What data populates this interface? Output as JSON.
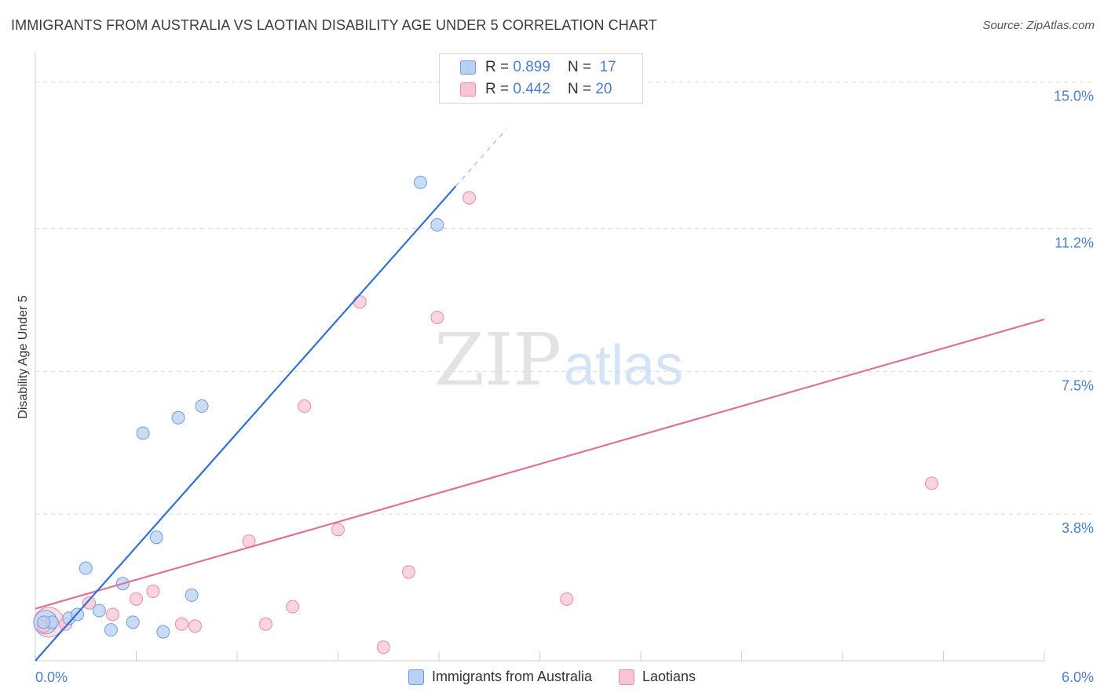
{
  "title": "IMMIGRANTS FROM AUSTRALIA VS LAOTIAN DISABILITY AGE UNDER 5 CORRELATION CHART",
  "source": "Source: ZipAtlas.com",
  "watermark": {
    "zip": "ZIP",
    "atlas": "atlas"
  },
  "legend": {
    "rows": [
      {
        "r_label": "R =",
        "r_value": "0.899",
        "n_label": "N =",
        "n_value": "17"
      },
      {
        "r_label": "R =",
        "r_value": "0.442",
        "n_label": "N =",
        "n_value": "20"
      }
    ]
  },
  "bottom_legend": {
    "series_a": "Immigrants from Australia",
    "series_b": "Laotians"
  },
  "colors": {
    "blue_fill": "#b8d0f2",
    "blue_stroke": "#6e9ce0",
    "blue_line": "#2f72d4",
    "pink_fill": "#f8c5d4",
    "pink_stroke": "#e98aa6",
    "pink_line": "#e0709a",
    "axis_label": "#4a7fd0",
    "grid": "#d8d8d8"
  },
  "chart_data": {
    "type": "scatter",
    "title": "IMMIGRANTS FROM AUSTRALIA VS LAOTIAN DISABILITY AGE UNDER 5 CORRELATION CHART",
    "xlabel": "",
    "ylabel": "Disability Age Under 5",
    "xlim": [
      0,
      6.0
    ],
    "ylim": [
      0,
      15.5
    ],
    "x_tick_labels": [
      "0.0%",
      "6.0%"
    ],
    "y_ticks": [
      3.8,
      7.5,
      11.2,
      15.0
    ],
    "y_tick_labels": [
      "3.8%",
      "7.5%",
      "11.2%",
      "15.0%"
    ],
    "series": [
      {
        "name": "Immigrants from Australia",
        "r": 0.899,
        "n": 17,
        "points": [
          [
            0.1,
            1.0
          ],
          [
            0.2,
            1.1
          ],
          [
            0.25,
            1.2
          ],
          [
            0.3,
            2.4
          ],
          [
            0.38,
            1.3
          ],
          [
            0.45,
            0.8
          ],
          [
            0.52,
            2.0
          ],
          [
            0.58,
            1.0
          ],
          [
            0.64,
            5.9
          ],
          [
            0.72,
            3.2
          ],
          [
            0.76,
            0.75
          ],
          [
            0.85,
            6.3
          ],
          [
            0.93,
            1.7
          ],
          [
            0.99,
            6.6
          ],
          [
            2.29,
            12.4
          ],
          [
            2.39,
            11.3
          ],
          [
            0.05,
            1.0
          ]
        ],
        "trend": {
          "x0": 0.0,
          "y0": 0.0,
          "x1": 2.5,
          "y1": 12.3,
          "dashed_to_x": 2.8
        }
      },
      {
        "name": "Laotians",
        "r": 0.442,
        "n": 20,
        "points": [
          [
            0.05,
            0.9
          ],
          [
            0.18,
            0.95
          ],
          [
            0.32,
            1.5
          ],
          [
            0.46,
            1.2
          ],
          [
            0.6,
            1.6
          ],
          [
            0.7,
            1.8
          ],
          [
            0.87,
            0.95
          ],
          [
            0.95,
            0.9
          ],
          [
            1.27,
            3.1
          ],
          [
            1.37,
            0.95
          ],
          [
            1.53,
            1.4
          ],
          [
            1.6,
            6.6
          ],
          [
            1.8,
            3.4
          ],
          [
            1.93,
            9.3
          ],
          [
            2.07,
            0.35
          ],
          [
            2.22,
            2.3
          ],
          [
            2.39,
            8.9
          ],
          [
            2.58,
            12.0
          ],
          [
            3.16,
            1.6
          ],
          [
            5.33,
            4.6
          ]
        ],
        "trend": {
          "x0": 0.0,
          "y0": 1.35,
          "x1": 6.0,
          "y1": 8.85
        }
      }
    ]
  }
}
